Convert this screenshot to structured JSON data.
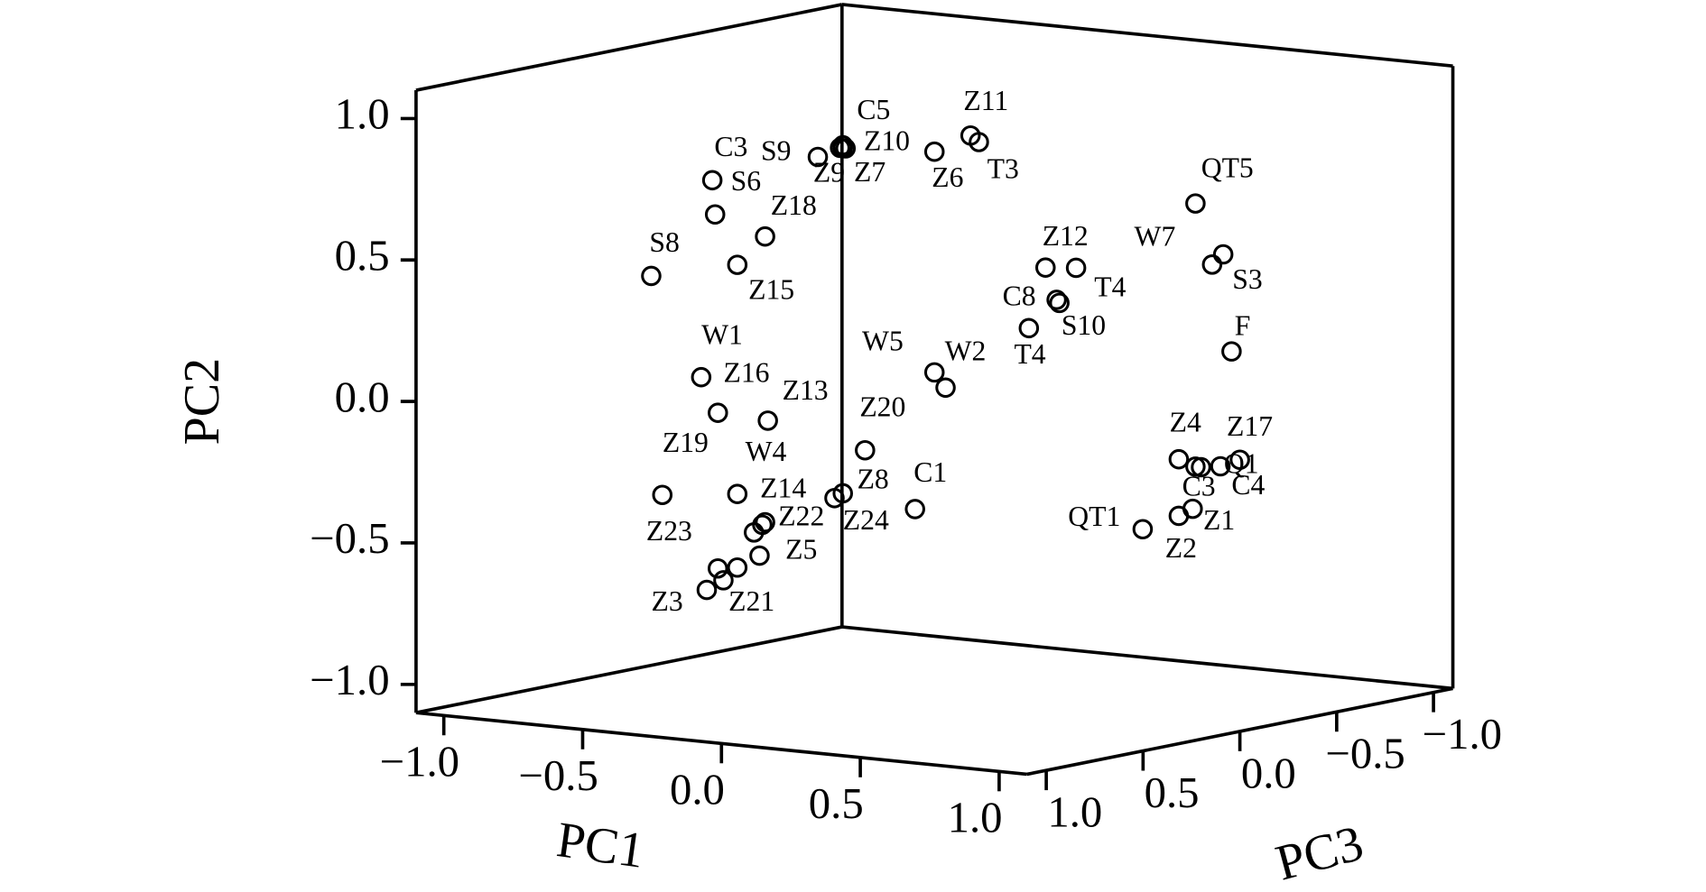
{
  "chart_data": {
    "type": "scatter3d",
    "xlabel": "PC1",
    "ylabel": "PC2",
    "zlabel": "PC3",
    "xlim": [
      -1.1,
      1.1
    ],
    "ylim": [
      -1.1,
      1.1
    ],
    "zlim": [
      -1.1,
      1.1
    ],
    "xticks": [
      {
        "value": -1,
        "label": "−1.0"
      },
      {
        "value": -0.5,
        "label": "−0.5"
      },
      {
        "value": 0,
        "label": "0.0"
      },
      {
        "value": 0.5,
        "label": "0.5"
      },
      {
        "value": 1,
        "label": "1.0"
      }
    ],
    "yticks": [
      {
        "value": -1,
        "label": "−1.0"
      },
      {
        "value": -0.5,
        "label": "−0.5"
      },
      {
        "value": 0,
        "label": "0.0"
      },
      {
        "value": 0.5,
        "label": "0.5"
      },
      {
        "value": 1,
        "label": "1.0"
      }
    ],
    "zticks": [
      {
        "value": -1,
        "label": "−1.0"
      },
      {
        "value": -0.5,
        "label": "−0.5"
      },
      {
        "value": 0,
        "label": "0.0"
      },
      {
        "value": 0.5,
        "label": "0.5"
      },
      {
        "value": 1,
        "label": "1.0"
      }
    ],
    "color": "#000000",
    "labels": [
      "S8",
      "C3",
      "S6",
      "S9",
      "C5",
      "Z10",
      "Z9",
      "Z7",
      "Z6",
      "Z11",
      "T3",
      "Z18",
      "Z15",
      "QT5",
      "Z12",
      "W7",
      "S3",
      "T4",
      "C8",
      "S10",
      "T4",
      "F",
      "W1",
      "Z16",
      "Z13",
      "W5",
      "W2",
      "Z20",
      "Z19",
      "W4",
      "Z14",
      "Z22",
      "Z23",
      "Z8",
      "Z24",
      "C1",
      "Z5",
      "Z3",
      "Z21",
      null,
      null,
      "Z4",
      "C3",
      "C4",
      "Q1",
      "Z17",
      "Z1",
      "Z2",
      "QT1"
    ],
    "x": [
      -1.02,
      -0.8,
      -0.79,
      -0.42,
      -0.33,
      -0.33,
      -0.34,
      -0.32,
      0.0,
      0.13,
      0.16,
      -0.61,
      -0.71,
      0.94,
      0.4,
      1.0,
      1.04,
      0.51,
      0.44,
      0.45,
      0.34,
      1.07,
      -0.84,
      -0.78,
      -0.6,
      0.0,
      0.04,
      -0.25,
      -0.98,
      -0.71,
      -0.62,
      -0.61,
      -0.65,
      -0.36,
      -0.33,
      -0.07,
      -0.63,
      -0.82,
      -0.71,
      -0.78,
      -0.76,
      0.88,
      0.96,
      0.94,
      1.03,
      1.1,
      0.93,
      0.88,
      0.75
    ],
    "y": [
      0.3,
      0.66,
      0.54,
      0.78,
      0.83,
      0.82,
      0.82,
      0.82,
      0.84,
      0.91,
      0.89,
      0.48,
      0.37,
      0.75,
      0.47,
      0.54,
      0.58,
      0.48,
      0.36,
      0.35,
      0.25,
      0.24,
      -0.04,
      -0.16,
      -0.17,
      0.06,
      0.01,
      -0.24,
      -0.47,
      -0.44,
      -0.54,
      -0.53,
      -0.57,
      -0.42,
      -0.4,
      -0.43,
      -0.65,
      -0.79,
      -0.7,
      -0.71,
      -0.75,
      -0.16,
      -0.18,
      -0.18,
      -0.17,
      -0.14,
      -0.33,
      -0.36,
      -0.42
    ],
    "z": [
      0,
      0,
      0,
      0,
      0,
      0,
      0,
      0,
      0,
      0,
      0,
      0,
      0,
      0,
      0,
      0,
      0,
      0,
      0,
      0,
      0,
      0,
      0,
      0,
      0,
      0,
      0,
      0,
      0,
      0,
      0,
      0,
      0,
      0,
      0,
      0,
      0,
      0,
      0,
      0,
      0,
      0,
      0,
      0,
      0,
      0,
      0,
      0,
      0
    ]
  }
}
